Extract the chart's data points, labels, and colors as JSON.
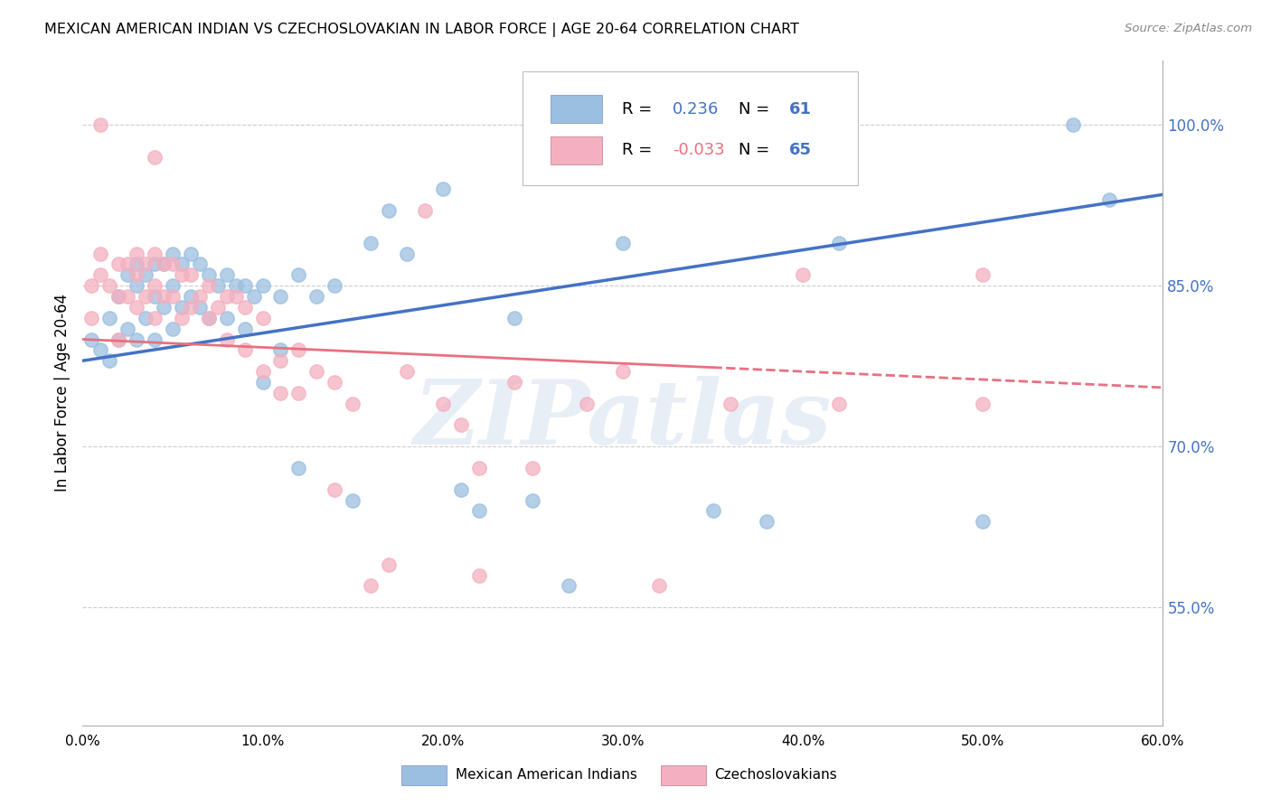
{
  "title": "MEXICAN AMERICAN INDIAN VS CZECHOSLOVAKIAN IN LABOR FORCE | AGE 20-64 CORRELATION CHART",
  "source": "Source: ZipAtlas.com",
  "ylabel": "In Labor Force | Age 20-64",
  "xlim": [
    0.0,
    0.6
  ],
  "ylim": [
    0.44,
    1.06
  ],
  "xtick_labels": [
    "0.0%",
    "10.0%",
    "20.0%",
    "30.0%",
    "40.0%",
    "50.0%",
    "60.0%"
  ],
  "xtick_values": [
    0.0,
    0.1,
    0.2,
    0.3,
    0.4,
    0.5,
    0.6
  ],
  "ytick_labels": [
    "55.0%",
    "70.0%",
    "85.0%",
    "100.0%"
  ],
  "ytick_values": [
    0.55,
    0.7,
    0.85,
    1.0
  ],
  "blue_R": "0.236",
  "blue_N": "61",
  "pink_R": "-0.033",
  "pink_N": "65",
  "legend_label_blue": "Mexican American Indians",
  "legend_label_pink": "Czechoslovakians",
  "watermark": "ZIPatlas",
  "blue_color": "#9bbfe0",
  "pink_color": "#f4b0c0",
  "blue_line_color": "#4472c4",
  "pink_line_color": "#e87080",
  "blue_scatter_x": [
    0.005,
    0.01,
    0.015,
    0.015,
    0.02,
    0.02,
    0.025,
    0.025,
    0.03,
    0.03,
    0.03,
    0.035,
    0.035,
    0.04,
    0.04,
    0.04,
    0.045,
    0.045,
    0.05,
    0.05,
    0.05,
    0.055,
    0.055,
    0.06,
    0.06,
    0.065,
    0.065,
    0.07,
    0.07,
    0.075,
    0.08,
    0.08,
    0.085,
    0.09,
    0.09,
    0.095,
    0.1,
    0.1,
    0.11,
    0.11,
    0.12,
    0.12,
    0.13,
    0.14,
    0.15,
    0.16,
    0.17,
    0.18,
    0.2,
    0.21,
    0.22,
    0.24,
    0.25,
    0.27,
    0.3,
    0.35,
    0.38,
    0.42,
    0.5,
    0.55,
    0.57
  ],
  "blue_scatter_y": [
    0.8,
    0.79,
    0.82,
    0.78,
    0.84,
    0.8,
    0.86,
    0.81,
    0.87,
    0.85,
    0.8,
    0.86,
    0.82,
    0.87,
    0.84,
    0.8,
    0.87,
    0.83,
    0.88,
    0.85,
    0.81,
    0.87,
    0.83,
    0.88,
    0.84,
    0.87,
    0.83,
    0.86,
    0.82,
    0.85,
    0.86,
    0.82,
    0.85,
    0.85,
    0.81,
    0.84,
    0.85,
    0.76,
    0.84,
    0.79,
    0.86,
    0.68,
    0.84,
    0.85,
    0.65,
    0.89,
    0.92,
    0.88,
    0.94,
    0.66,
    0.64,
    0.82,
    0.65,
    0.57,
    0.89,
    0.64,
    0.63,
    0.89,
    0.63,
    1.0,
    0.93
  ],
  "pink_scatter_x": [
    0.005,
    0.005,
    0.01,
    0.01,
    0.015,
    0.02,
    0.02,
    0.02,
    0.025,
    0.025,
    0.03,
    0.03,
    0.03,
    0.035,
    0.035,
    0.04,
    0.04,
    0.04,
    0.045,
    0.045,
    0.05,
    0.05,
    0.055,
    0.055,
    0.06,
    0.06,
    0.065,
    0.07,
    0.07,
    0.075,
    0.08,
    0.08,
    0.085,
    0.09,
    0.09,
    0.1,
    0.1,
    0.11,
    0.11,
    0.12,
    0.12,
    0.13,
    0.14,
    0.15,
    0.16,
    0.17,
    0.18,
    0.2,
    0.21,
    0.22,
    0.24,
    0.25,
    0.28,
    0.3,
    0.32,
    0.36,
    0.4,
    0.42,
    0.5,
    0.01,
    0.04,
    0.19,
    0.5,
    0.14,
    0.22
  ],
  "pink_scatter_y": [
    0.82,
    0.85,
    0.88,
    0.86,
    0.85,
    0.87,
    0.84,
    0.8,
    0.87,
    0.84,
    0.88,
    0.86,
    0.83,
    0.87,
    0.84,
    0.88,
    0.85,
    0.82,
    0.87,
    0.84,
    0.87,
    0.84,
    0.86,
    0.82,
    0.86,
    0.83,
    0.84,
    0.85,
    0.82,
    0.83,
    0.84,
    0.8,
    0.84,
    0.83,
    0.79,
    0.82,
    0.77,
    0.78,
    0.75,
    0.79,
    0.75,
    0.77,
    0.76,
    0.74,
    0.57,
    0.59,
    0.77,
    0.74,
    0.72,
    0.68,
    0.76,
    0.68,
    0.74,
    0.77,
    0.57,
    0.74,
    0.86,
    0.74,
    0.74,
    1.0,
    0.97,
    0.92,
    0.86,
    0.66,
    0.58
  ]
}
